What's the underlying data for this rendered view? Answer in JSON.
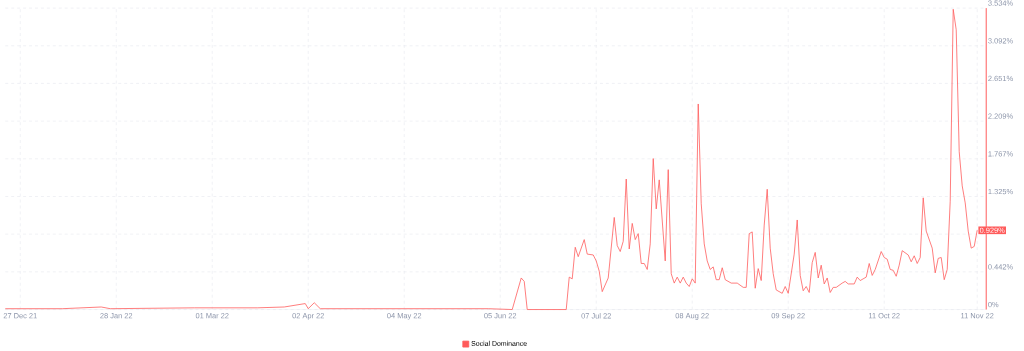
{
  "chart_data": {
    "type": "line",
    "x": [
      "2021-12-22",
      "2022-01-10",
      "2022-01-23",
      "2022-01-26",
      "2022-02-23",
      "2022-03-16",
      "2022-03-25",
      "2022-04-01",
      "2022-04-02",
      "2022-04-04",
      "2022-04-06",
      "2022-04-20",
      "2022-05-10",
      "2022-06-01",
      "2022-06-09",
      "2022-06-12",
      "2022-06-13",
      "2022-06-14",
      "2022-06-27",
      "2022-06-28",
      "2022-06-29",
      "2022-06-30",
      "2022-07-01",
      "2022-07-03",
      "2022-07-04",
      "2022-07-06",
      "2022-07-07",
      "2022-07-08",
      "2022-07-09",
      "2022-07-11",
      "2022-07-13",
      "2022-07-14",
      "2022-07-15",
      "2022-07-16",
      "2022-07-17",
      "2022-07-18",
      "2022-07-19",
      "2022-07-20",
      "2022-07-21",
      "2022-07-22",
      "2022-07-23",
      "2022-07-24",
      "2022-07-25",
      "2022-07-26",
      "2022-07-27",
      "2022-07-28",
      "2022-07-30",
      "2022-07-31",
      "2022-08-01",
      "2022-08-02",
      "2022-08-03",
      "2022-08-04",
      "2022-08-05",
      "2022-08-06",
      "2022-08-07",
      "2022-08-08",
      "2022-08-09",
      "2022-08-10",
      "2022-08-11",
      "2022-08-12",
      "2022-08-13",
      "2022-08-14",
      "2022-08-15",
      "2022-08-16",
      "2022-08-17",
      "2022-08-18",
      "2022-08-19",
      "2022-08-21",
      "2022-08-23",
      "2022-08-25",
      "2022-08-26",
      "2022-08-27",
      "2022-08-28",
      "2022-08-29",
      "2022-08-30",
      "2022-08-31",
      "2022-09-01",
      "2022-09-02",
      "2022-09-03",
      "2022-09-04",
      "2022-09-05",
      "2022-09-07",
      "2022-09-08",
      "2022-09-09",
      "2022-09-11",
      "2022-09-12",
      "2022-09-13",
      "2022-09-14",
      "2022-09-15",
      "2022-09-16",
      "2022-09-17",
      "2022-09-18",
      "2022-09-19",
      "2022-09-20",
      "2022-09-21",
      "2022-09-22",
      "2022-09-23",
      "2022-09-24",
      "2022-09-25",
      "2022-09-27",
      "2022-09-28",
      "2022-09-29",
      "2022-10-01",
      "2022-10-02",
      "2022-10-03",
      "2022-10-04",
      "2022-10-05",
      "2022-10-06",
      "2022-10-07",
      "2022-10-08",
      "2022-10-10",
      "2022-10-11",
      "2022-10-12",
      "2022-10-13",
      "2022-10-14",
      "2022-10-15",
      "2022-10-16",
      "2022-10-17",
      "2022-10-19",
      "2022-10-20",
      "2022-10-21",
      "2022-10-22",
      "2022-10-23",
      "2022-10-24",
      "2022-10-25",
      "2022-10-27",
      "2022-10-28",
      "2022-10-29",
      "2022-10-30",
      "2022-10-31",
      "2022-11-01",
      "2022-11-02",
      "2022-11-03",
      "2022-11-04",
      "2022-11-05",
      "2022-11-06",
      "2022-11-07",
      "2022-11-08",
      "2022-11-09",
      "2022-11-10",
      "2022-11-11"
    ],
    "series": [
      {
        "name": "Social Dominance",
        "color": "#ff5b5b",
        "values": [
          0.01,
          0.01,
          0.03,
          0.01,
          0.02,
          0.02,
          0.03,
          0.07,
          0.01,
          0.08,
          0.01,
          0.01,
          0.01,
          0.01,
          0,
          0.37,
          0.33,
          0,
          0,
          0.38,
          0.36,
          0.73,
          0.62,
          0.82,
          0.65,
          0.64,
          0.57,
          0.45,
          0.21,
          0.37,
          1.08,
          0.75,
          0.68,
          0.8,
          1.53,
          0.71,
          1.01,
          0.82,
          0.89,
          0.54,
          0.54,
          0.47,
          0.77,
          1.77,
          1.18,
          1.52,
          0.57,
          1.64,
          0.42,
          0.31,
          0.38,
          0.31,
          0.38,
          0.31,
          0.27,
          0.36,
          0.31,
          2.41,
          1.24,
          0.77,
          0.57,
          0.47,
          0.5,
          0.35,
          0.35,
          0.49,
          0.35,
          0.31,
          0.31,
          0.26,
          0.26,
          0.89,
          0.91,
          0.25,
          0.48,
          0.34,
          0.99,
          1.41,
          0.72,
          0.42,
          0.23,
          0.19,
          0.27,
          0.19,
          0.65,
          1.05,
          0.4,
          0.22,
          0.27,
          0.2,
          0.55,
          0.67,
          0.37,
          0.52,
          0.3,
          0.37,
          0.2,
          0.26,
          0.26,
          0.31,
          0.33,
          0.3,
          0.3,
          0.38,
          0.34,
          0.36,
          0.38,
          0.54,
          0.4,
          0.47,
          0.68,
          0.61,
          0.59,
          0.47,
          0.46,
          0.39,
          0.52,
          0.69,
          0.64,
          0.56,
          0.63,
          0.54,
          0.61,
          1.31,
          0.92,
          0.72,
          0.43,
          0.6,
          0.61,
          0.35,
          0.47,
          1.27,
          3.52,
          3.28,
          1.85,
          1.45,
          1.25,
          0.92,
          0.72,
          0.74,
          0.93
        ]
      }
    ],
    "xlim": [
      "2021-12-22",
      "2022-11-14"
    ],
    "xticks": [
      {
        "value": "2021-12-27",
        "label": "27 Dec 21"
      },
      {
        "value": "2022-01-28",
        "label": "28 Jan 22"
      },
      {
        "value": "2022-03-01",
        "label": "01 Mar 22"
      },
      {
        "value": "2022-04-02",
        "label": "02 Apr 22"
      },
      {
        "value": "2022-05-04",
        "label": "04 May 22"
      },
      {
        "value": "2022-06-05",
        "label": "05 Jun 22"
      },
      {
        "value": "2022-07-07",
        "label": "07 Jul 22"
      },
      {
        "value": "2022-08-08",
        "label": "08 Aug 22"
      },
      {
        "value": "2022-09-09",
        "label": "09 Sep 22"
      },
      {
        "value": "2022-10-11",
        "label": "11 Oct 22"
      },
      {
        "value": "2022-11-11",
        "label": "11 Nov 22"
      }
    ],
    "ylim": [
      0,
      3.534
    ],
    "yticks": [
      {
        "value": 0,
        "label": "0%"
      },
      {
        "value": 0.442,
        "label": "0.442%"
      },
      {
        "value": 0.884,
        "label": null
      },
      {
        "value": 1.325,
        "label": "1.325%"
      },
      {
        "value": 1.767,
        "label": "1.767%"
      },
      {
        "value": 2.209,
        "label": "2.209%"
      },
      {
        "value": 2.651,
        "label": "2.651%"
      },
      {
        "value": 3.092,
        "label": "3.092%"
      },
      {
        "value": 3.534,
        "label": "3.534%"
      }
    ],
    "annotations": [
      {
        "text": "0.929%",
        "x": "2022-11-11",
        "y": 0.929
      }
    ],
    "grid": true,
    "legend": "bottom",
    "marker": "none",
    "line_style": "solid"
  }
}
